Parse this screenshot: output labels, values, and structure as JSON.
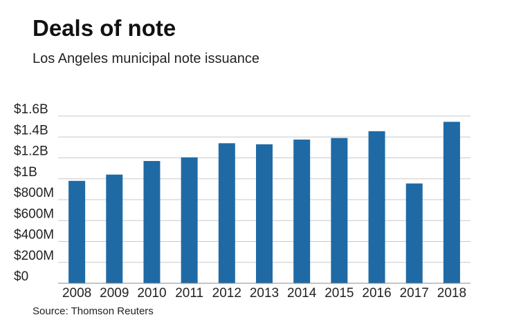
{
  "title": "Deals of note",
  "subtitle": "Los Angeles municipal note issuance",
  "source": "Source: Thomson Reuters",
  "colors": {
    "bar": "#1f6aa5",
    "grid": "#c8c8c8",
    "axis": "#888888"
  },
  "chart_data": {
    "type": "bar",
    "title": "Deals of note",
    "subtitle": "Los Angeles municipal note issuance",
    "xlabel": "",
    "ylabel": "",
    "categories": [
      "2008",
      "2009",
      "2010",
      "2011",
      "2012",
      "2013",
      "2014",
      "2015",
      "2016",
      "2017",
      "2018"
    ],
    "values": [
      980,
      1040,
      1170,
      1205,
      1340,
      1330,
      1375,
      1390,
      1455,
      955,
      1545
    ],
    "units": "millions of dollars",
    "ylim": [
      0,
      1600
    ],
    "yticks": [
      0,
      200,
      400,
      600,
      800,
      1000,
      1200,
      1400,
      1600
    ],
    "ytick_labels": [
      "$0",
      "$200M",
      "$400M",
      "$600M",
      "$800M",
      "$1B",
      "$1.2B",
      "$1.4B",
      "$1.6B"
    ],
    "grid": true,
    "legend": "none"
  }
}
